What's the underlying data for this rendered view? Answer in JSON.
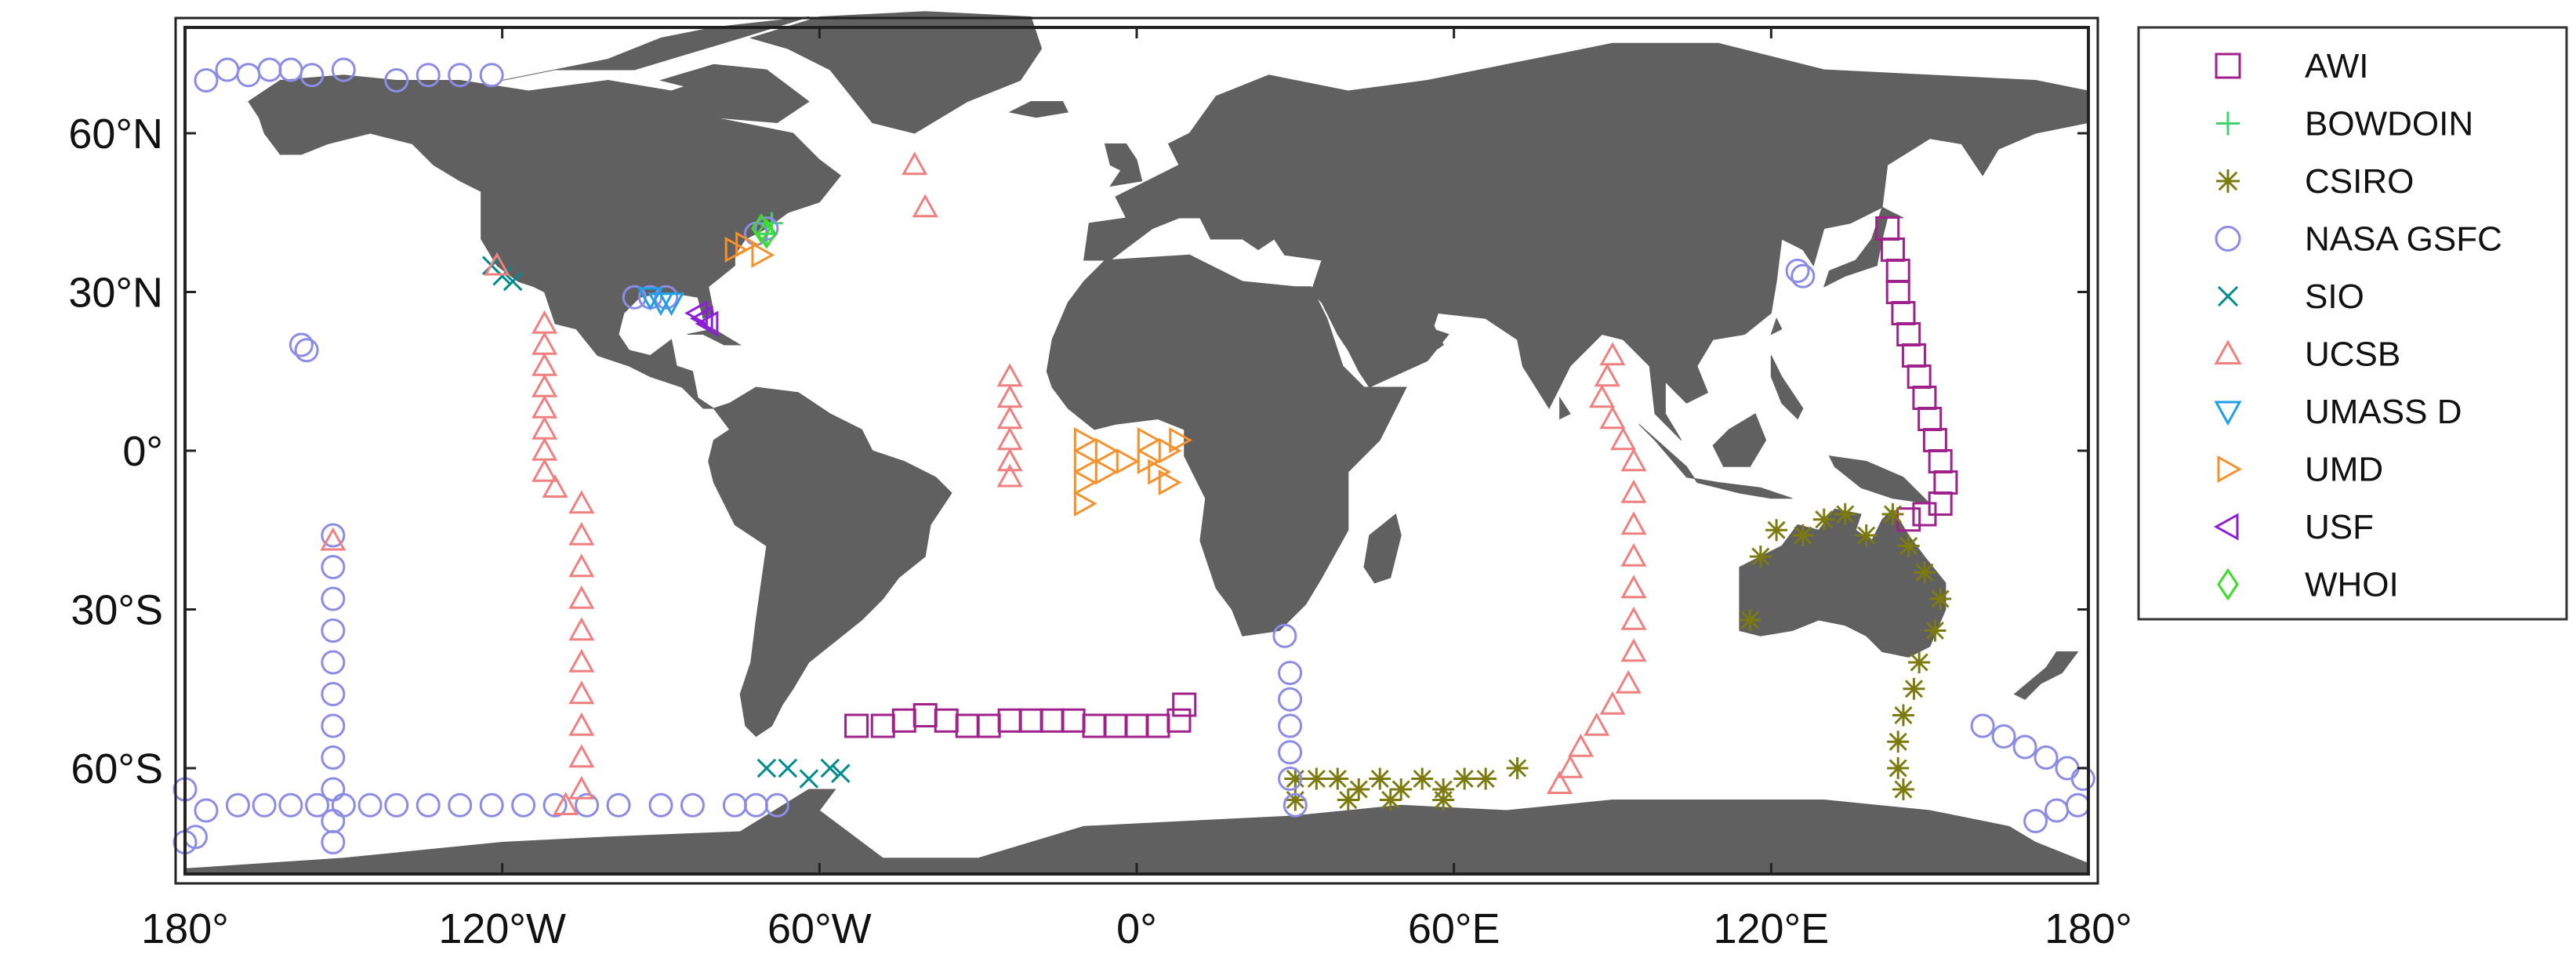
{
  "chart_data": {
    "type": "scatter",
    "title": "",
    "projection": "equirectangular",
    "xlim": [
      -180,
      180
    ],
    "ylim": [
      -80,
      80
    ],
    "x_ticks": [
      {
        "value": -180,
        "label": "180°"
      },
      {
        "value": -120,
        "label": "120°W"
      },
      {
        "value": -60,
        "label": "60°W"
      },
      {
        "value": 0,
        "label": "0°"
      },
      {
        "value": 60,
        "label": "60°E"
      },
      {
        "value": 120,
        "label": "120°E"
      },
      {
        "value": 180,
        "label": "180°"
      }
    ],
    "y_ticks": [
      {
        "value": 60,
        "label": "60°N"
      },
      {
        "value": 30,
        "label": "30°N"
      },
      {
        "value": 0,
        "label": "0°"
      },
      {
        "value": -30,
        "label": "30°S"
      },
      {
        "value": -60,
        "label": "60°S"
      }
    ],
    "legend_position": "right",
    "land_color": "#606060",
    "ocean_color": "#ffffff",
    "series": [
      {
        "name": "AWI",
        "marker": "square",
        "color": "#a0208c",
        "points": [
          [
            -53,
            -52
          ],
          [
            -48,
            -52
          ],
          [
            -44,
            -51
          ],
          [
            -40,
            -50
          ],
          [
            -36,
            -51
          ],
          [
            -32,
            -52
          ],
          [
            -28,
            -52
          ],
          [
            -24,
            -51
          ],
          [
            -20,
            -51
          ],
          [
            -16,
            -51
          ],
          [
            -12,
            -51
          ],
          [
            -8,
            -52
          ],
          [
            -4,
            -52
          ],
          [
            0,
            -52
          ],
          [
            4,
            -52
          ],
          [
            8,
            -51
          ],
          [
            9,
            -48
          ],
          [
            142,
            42
          ],
          [
            143,
            38
          ],
          [
            144,
            34
          ],
          [
            144,
            30
          ],
          [
            145,
            26
          ],
          [
            146,
            22
          ],
          [
            147,
            18
          ],
          [
            148,
            14
          ],
          [
            149,
            10
          ],
          [
            150,
            6
          ],
          [
            151,
            2
          ],
          [
            152,
            -2
          ],
          [
            153,
            -6
          ],
          [
            152,
            -10
          ],
          [
            149,
            -12
          ],
          [
            146,
            -13
          ]
        ]
      },
      {
        "name": "BOWDOIN",
        "marker": "plus",
        "color": "#3fd46a",
        "points": [
          [
            -69,
            43
          ],
          [
            -70,
            41
          ]
        ]
      },
      {
        "name": "CSIRO",
        "marker": "asterisk",
        "color": "#7b7b10",
        "points": [
          [
            116,
            -32
          ],
          [
            118,
            -20
          ],
          [
            121,
            -15
          ],
          [
            126,
            -16
          ],
          [
            130,
            -13
          ],
          [
            134,
            -12
          ],
          [
            138,
            -16
          ],
          [
            143,
            -12
          ],
          [
            146,
            -18
          ],
          [
            149,
            -23
          ],
          [
            152,
            -28
          ],
          [
            151,
            -34
          ],
          [
            148,
            -40
          ],
          [
            147,
            -45
          ],
          [
            145,
            -50
          ],
          [
            144,
            -55
          ],
          [
            144,
            -60
          ],
          [
            145,
            -64
          ],
          [
            30,
            -62
          ],
          [
            34,
            -62
          ],
          [
            38,
            -62
          ],
          [
            42,
            -64
          ],
          [
            46,
            -62
          ],
          [
            50,
            -64
          ],
          [
            54,
            -62
          ],
          [
            58,
            -64
          ],
          [
            62,
            -62
          ],
          [
            66,
            -62
          ],
          [
            72,
            -60
          ],
          [
            30,
            -66
          ],
          [
            40,
            -66
          ],
          [
            48,
            -66
          ],
          [
            58,
            -66
          ]
        ]
      },
      {
        "name": "NASA GSFC",
        "marker": "circle",
        "color": "#8c8ce6",
        "points": [
          [
            -176,
            70
          ],
          [
            -172,
            72
          ],
          [
            -168,
            71
          ],
          [
            -164,
            72
          ],
          [
            -160,
            72
          ],
          [
            -156,
            71
          ],
          [
            -150,
            72
          ],
          [
            -140,
            70
          ],
          [
            -134,
            71
          ],
          [
            -128,
            71
          ],
          [
            -122,
            71
          ],
          [
            -158,
            20
          ],
          [
            -157,
            19
          ],
          [
            -95,
            29
          ],
          [
            -92,
            29
          ],
          [
            -89,
            29
          ],
          [
            -72,
            41
          ],
          [
            -70,
            42
          ],
          [
            125,
            34
          ],
          [
            126,
            33
          ],
          [
            -180,
            -64
          ],
          [
            -176,
            -68
          ],
          [
            -170,
            -67
          ],
          [
            -165,
            -67
          ],
          [
            -160,
            -67
          ],
          [
            -155,
            -67
          ],
          [
            -150,
            -67
          ],
          [
            -145,
            -67
          ],
          [
            -140,
            -67
          ],
          [
            -134,
            -67
          ],
          [
            -128,
            -67
          ],
          [
            -122,
            -67
          ],
          [
            -116,
            -67
          ],
          [
            -110,
            -67
          ],
          [
            -104,
            -67
          ],
          [
            -98,
            -67
          ],
          [
            -90,
            -67
          ],
          [
            -84,
            -67
          ],
          [
            -76,
            -67
          ],
          [
            -72,
            -67
          ],
          [
            -68,
            -67
          ],
          [
            -152,
            -16
          ],
          [
            -152,
            -22
          ],
          [
            -152,
            -28
          ],
          [
            -152,
            -34
          ],
          [
            -152,
            -40
          ],
          [
            -152,
            -46
          ],
          [
            -152,
            -52
          ],
          [
            -152,
            -58
          ],
          [
            -152,
            -64
          ],
          [
            -152,
            -70
          ],
          [
            -152,
            -74
          ],
          [
            -180,
            -74
          ],
          [
            -178,
            -73
          ],
          [
            28,
            -35
          ],
          [
            29,
            -42
          ],
          [
            29,
            -47
          ],
          [
            29,
            -52
          ],
          [
            29,
            -57
          ],
          [
            29,
            -62
          ],
          [
            30,
            -67
          ],
          [
            160,
            -52
          ],
          [
            164,
            -54
          ],
          [
            168,
            -56
          ],
          [
            172,
            -58
          ],
          [
            176,
            -60
          ],
          [
            179,
            -62
          ],
          [
            178,
            -67
          ],
          [
            174,
            -68
          ],
          [
            170,
            -70
          ]
        ]
      },
      {
        "name": "SIO",
        "marker": "x",
        "color": "#008c8c",
        "points": [
          [
            -122,
            35
          ],
          [
            -120,
            33
          ],
          [
            -118,
            32
          ],
          [
            -70,
            -60
          ],
          [
            -66,
            -60
          ],
          [
            -62,
            -62
          ],
          [
            -58,
            -60
          ],
          [
            -56,
            -61
          ]
        ]
      },
      {
        "name": "UCSB",
        "marker": "triangle-up",
        "color": "#f08080",
        "points": [
          [
            -42,
            54
          ],
          [
            -40,
            46
          ],
          [
            -24,
            14
          ],
          [
            -24,
            10
          ],
          [
            -24,
            6
          ],
          [
            -24,
            2
          ],
          [
            -24,
            -2
          ],
          [
            -24,
            -5
          ],
          [
            -121,
            35
          ],
          [
            -112,
            24
          ],
          [
            -112,
            20
          ],
          [
            -112,
            16
          ],
          [
            -112,
            12
          ],
          [
            -112,
            8
          ],
          [
            -112,
            4
          ],
          [
            -112,
            0
          ],
          [
            -112,
            -4
          ],
          [
            -110,
            -7
          ],
          [
            -105,
            -10
          ],
          [
            -105,
            -16
          ],
          [
            -105,
            -22
          ],
          [
            -105,
            -28
          ],
          [
            -105,
            -34
          ],
          [
            -105,
            -40
          ],
          [
            -105,
            -46
          ],
          [
            -105,
            -52
          ],
          [
            -105,
            -58
          ],
          [
            -105,
            -64
          ],
          [
            -108,
            -67
          ],
          [
            -152,
            -17
          ],
          [
            90,
            18
          ],
          [
            89,
            14
          ],
          [
            88,
            10
          ],
          [
            90,
            6
          ],
          [
            92,
            2
          ],
          [
            94,
            -2
          ],
          [
            94,
            -8
          ],
          [
            94,
            -14
          ],
          [
            94,
            -20
          ],
          [
            94,
            -26
          ],
          [
            94,
            -32
          ],
          [
            94,
            -38
          ],
          [
            93,
            -44
          ],
          [
            90,
            -48
          ],
          [
            87,
            -52
          ],
          [
            84,
            -56
          ],
          [
            82,
            -60
          ],
          [
            80,
            -63
          ]
        ]
      },
      {
        "name": "UMASS D",
        "marker": "triangle-down",
        "color": "#1ea0e6",
        "points": [
          [
            -92,
            29
          ],
          [
            -90,
            28
          ],
          [
            -88,
            28
          ]
        ]
      },
      {
        "name": "UMD",
        "marker": "triangle-right",
        "color": "#f5902a",
        "points": [
          [
            -76,
            38
          ],
          [
            -74,
            39
          ],
          [
            -71,
            37
          ],
          [
            -10,
            2
          ],
          [
            -10,
            -2
          ],
          [
            -10,
            -6
          ],
          [
            -10,
            -10
          ],
          [
            -6,
            0
          ],
          [
            -6,
            -4
          ],
          [
            -2,
            -2
          ],
          [
            2,
            2
          ],
          [
            2,
            -2
          ],
          [
            4,
            -4
          ],
          [
            6,
            0
          ],
          [
            6,
            -6
          ],
          [
            8,
            2
          ]
        ]
      },
      {
        "name": "USF",
        "marker": "triangle-left",
        "color": "#8c1ed8",
        "points": [
          [
            -83,
            26
          ],
          [
            -82,
            25
          ],
          [
            -81,
            24
          ]
        ]
      },
      {
        "name": "WHOI",
        "marker": "diamond",
        "color": "#3cdc28",
        "points": [
          [
            -71,
            42
          ],
          [
            -70,
            41
          ]
        ]
      }
    ]
  }
}
